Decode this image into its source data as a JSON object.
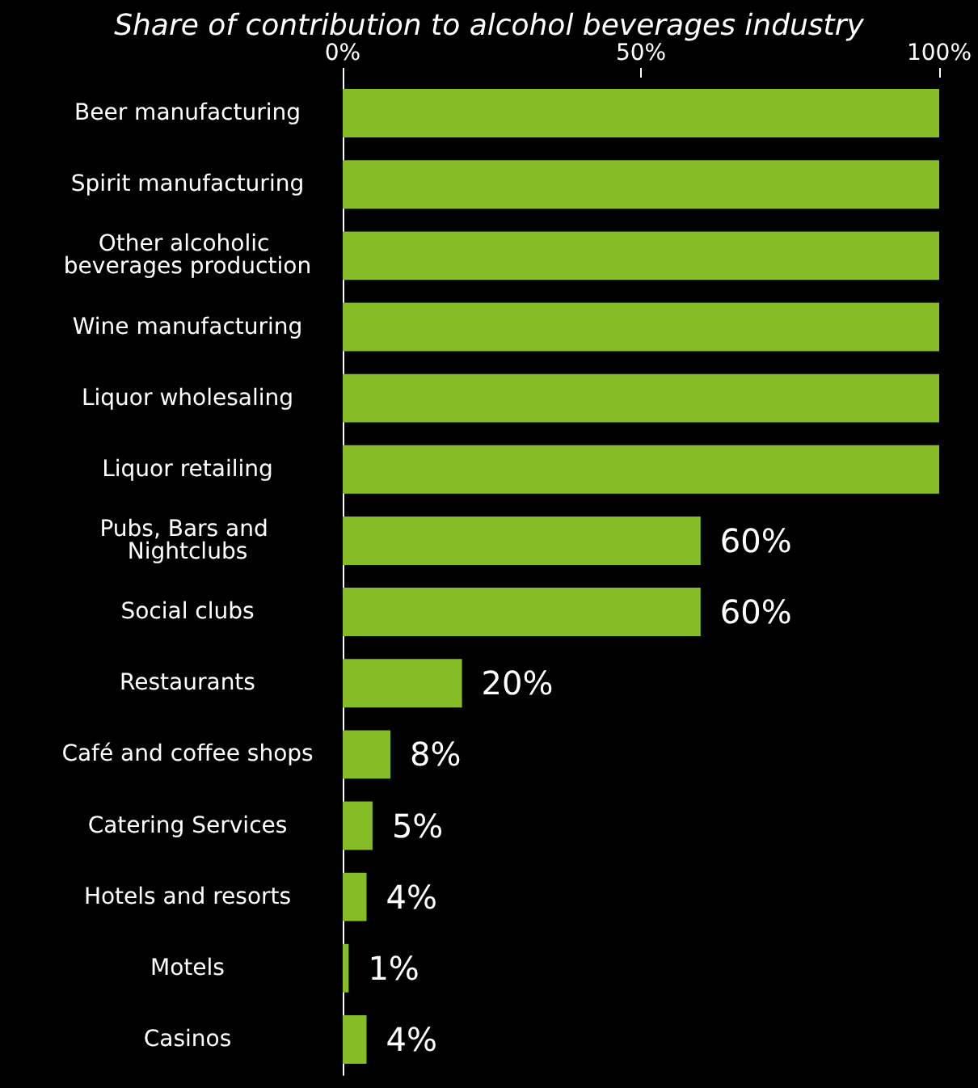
{
  "chart_data": {
    "type": "bar",
    "orientation": "horizontal",
    "title": "Share of contribution to alcohol beverages industry",
    "categories": [
      "Beer manufacturing",
      "Spirit manufacturing",
      "Other alcoholic beverages production",
      "Wine manufacturing",
      "Liquor wholesaling",
      "Liquor retailing",
      "Pubs, Bars and Nightclubs",
      "Social clubs",
      "Restaurants",
      "Café and coffee shops",
      "Catering Services",
      "Hotels and resorts",
      "Motels",
      "Casinos"
    ],
    "values": [
      100,
      100,
      100,
      100,
      100,
      100,
      60,
      60,
      20,
      8,
      5,
      4,
      1,
      4
    ],
    "value_labels": [
      null,
      null,
      null,
      null,
      null,
      null,
      "60%",
      "60%",
      "20%",
      "8%",
      "5%",
      "4%",
      "1%",
      "4%"
    ],
    "color": "#86bc25",
    "xlim": [
      0,
      100
    ],
    "xticks": [
      {
        "value": 0,
        "label": "0%"
      },
      {
        "value": 50,
        "label": "50%"
      },
      {
        "value": 100,
        "label": "100%"
      }
    ],
    "grid": false
  }
}
